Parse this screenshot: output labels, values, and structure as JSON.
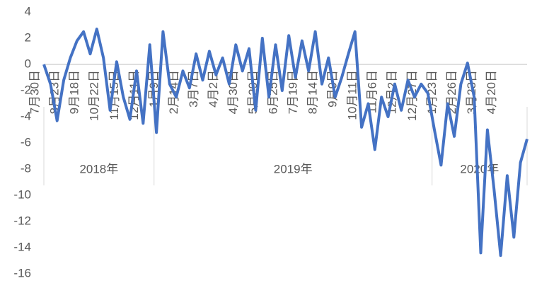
{
  "chart_data": {
    "type": "line",
    "categories": [
      "7月30日",
      null,
      null,
      "8月23日",
      null,
      null,
      "9月18日",
      null,
      null,
      "10月22日",
      null,
      null,
      "11月15日",
      null,
      null,
      "12月11日",
      null,
      null,
      "1月9日",
      null,
      null,
      "2月14日",
      null,
      null,
      "3月7日",
      null,
      null,
      "4月2日",
      null,
      null,
      "4月30日",
      null,
      null,
      "5月29日",
      null,
      null,
      "6月25日",
      null,
      null,
      "7月19日",
      null,
      null,
      "8月14日",
      null,
      null,
      "9月9日",
      null,
      null,
      "10月11日",
      null,
      null,
      "11月6日",
      null,
      null,
      "12月2日",
      null,
      null,
      "12月27日",
      null,
      null,
      "1月23日",
      null,
      null,
      "2月26日",
      null,
      null,
      "3月23日",
      null,
      null,
      "4月20日",
      null,
      null,
      null,
      null
    ],
    "groups": [
      {
        "label": "2018年",
        "count": 18
      },
      {
        "label": "2019年",
        "count": 42
      },
      {
        "label": "2020年",
        "count": 14
      }
    ],
    "series": [
      {
        "color": "#4472c4",
        "values": [
          0,
          -1.5,
          -4.3,
          -1.2,
          0.5,
          1.8,
          2.5,
          0.8,
          2.7,
          0.5,
          -3.5,
          0.2,
          -2.5,
          -4.2,
          -0.5,
          -4.5,
          1.5,
          -5.2,
          2.5,
          -1.5,
          -2.5,
          -0.5,
          -1.8,
          0.8,
          -1.2,
          1.0,
          -0.8,
          0.5,
          -1.5,
          1.5,
          -0.5,
          1.2,
          -3.5,
          2.0,
          -2.5,
          1.5,
          -2.0,
          2.2,
          -1.0,
          1.8,
          -0.5,
          2.5,
          -1.5,
          0.5,
          -2.5,
          -1.0,
          0.8,
          2.5,
          -4.8,
          -3.0,
          -6.5,
          -2.5,
          -4.0,
          -1.5,
          -3.5,
          -1.2,
          -2.5,
          -1.5,
          -2.2,
          -5.0,
          -7.7,
          -3.0,
          -5.5,
          -1.5,
          0.1,
          -2.5,
          -14.4,
          -5.0,
          -9.5,
          -14.6,
          -8.5,
          -13.2,
          -7.5,
          -5.7
        ]
      }
    ],
    "ylim": [
      -16,
      4
    ],
    "yticks": [
      -16,
      -14,
      -12,
      -10,
      -8,
      -6,
      -4,
      -2,
      0,
      2,
      4
    ],
    "grid": false
  }
}
